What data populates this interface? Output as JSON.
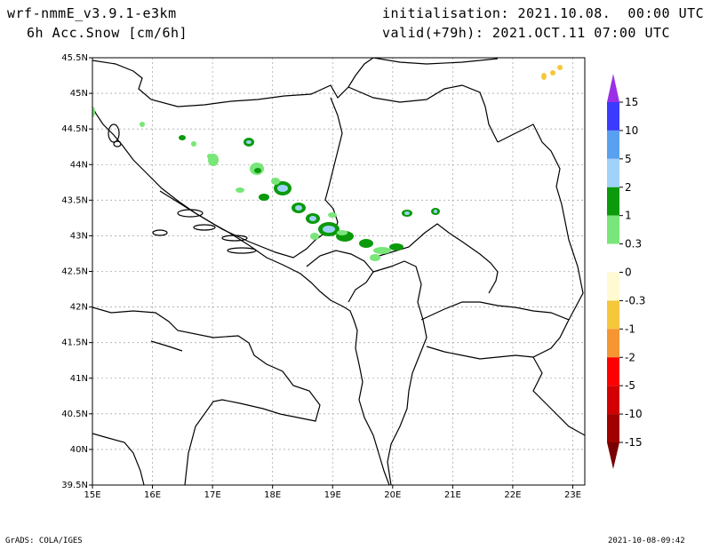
{
  "header": {
    "model": "wrf-nmmE_v3.9.1-e3km",
    "field": "6h Acc.Snow [cm/6h]",
    "init": "initialisation: 2021.10.08.  00:00 UTC",
    "valid": "valid(+79h): 2021.OCT.11 07:00 UTC"
  },
  "axes": {
    "lat_labels": [
      "45.5N",
      "45N",
      "44.5N",
      "44N",
      "43.5N",
      "43N",
      "42.5N",
      "42N",
      "41.5N",
      "41N",
      "40.5N",
      "40N",
      "39.5N"
    ],
    "lon_labels": [
      "15E",
      "16E",
      "17E",
      "18E",
      "19E",
      "20E",
      "21E",
      "22E",
      "23E"
    ]
  },
  "colorbar": {
    "levels": [
      "15",
      "10",
      "5",
      "2",
      "1",
      "0.3",
      "0",
      "-0.3",
      "-1",
      "-2",
      "-5",
      "-10",
      "-15"
    ],
    "colors": [
      "#9b2fe8",
      "#3b3bff",
      "#5aa0f0",
      "#a0d2fa",
      "#0a9a0a",
      "#78e678",
      "#ffffff",
      "#fffad2",
      "#f5c83c",
      "#f59632",
      "#ff0000",
      "#d20000",
      "#a00000",
      "#780000"
    ]
  },
  "footer": {
    "left": "GrADS: COLA/IGES",
    "right": "2021-10-08-09:42"
  }
}
